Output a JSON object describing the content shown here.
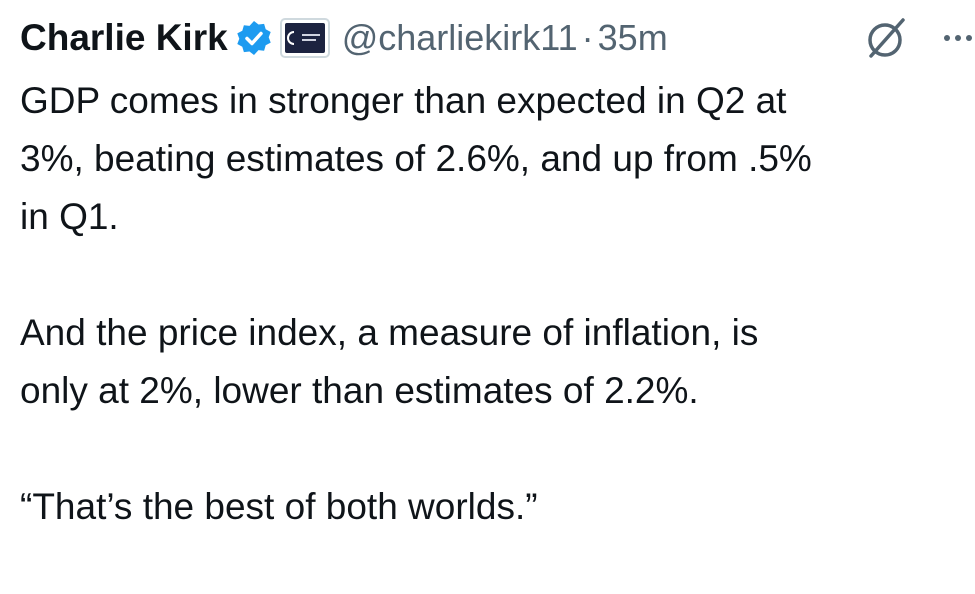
{
  "tweet": {
    "author": {
      "name": "Charlie Kirk",
      "handle": "@charliekirk11",
      "separator": "·",
      "time": "35m"
    },
    "paragraphs": [
      [
        "GDP comes in stronger than expected in Q2 at",
        "3%, beating estimates of 2.6%, and up from .5%",
        "in Q1."
      ],
      [
        "And the price index, a measure of inflation, is",
        "only at 2%, lower than estimates of 2.2%."
      ],
      [
        "“That’s the best of both worlds.”"
      ]
    ]
  }
}
